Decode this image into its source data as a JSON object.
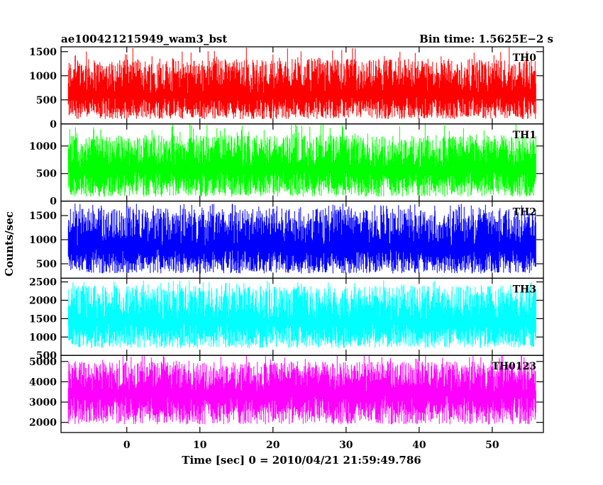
{
  "header": {
    "title": "ae100421215949_wam3_bst",
    "bin_time": "Bin time: 1.5625E−2 s"
  },
  "axes": {
    "xlabel": "Time [sec] 0 = 2010/04/21 21:59:49.786",
    "ylabel": "Counts/sec"
  },
  "chart_data": {
    "type": "line",
    "title": "ae100421215949_wam3_bst",
    "xlabel": "Time [sec] 0 = 2010/04/21 21:59:49.786",
    "ylabel": "Counts/sec",
    "xlim": [
      -9,
      57
    ],
    "x_data_range": [
      -8,
      56
    ],
    "x_ticks": [
      0,
      10,
      20,
      30,
      40,
      50
    ],
    "x_tick_labels": [
      "0",
      "10",
      "20",
      "30",
      "40",
      "50"
    ],
    "grid": false,
    "panels": [
      {
        "name": "TH0",
        "color": "#ff0000",
        "ylim": [
          0,
          1600
        ],
        "yticks": [
          0,
          500,
          1000,
          1500
        ],
        "ytick_labels": [
          "0",
          "500",
          "1000",
          "1500"
        ],
        "mean": 620,
        "low": 100,
        "high": 1350,
        "peak": 1600
      },
      {
        "name": "TH1",
        "color": "#00ff00",
        "ylim": [
          0,
          1400
        ],
        "yticks": [
          0,
          500,
          1000
        ],
        "ytick_labels": [
          "0",
          "500",
          "1000"
        ],
        "mean": 600,
        "low": 80,
        "high": 1200,
        "peak": 1400
      },
      {
        "name": "TH2",
        "color": "#0000ff",
        "ylim": [
          200,
          1800
        ],
        "yticks": [
          500,
          1000,
          1500
        ],
        "ytick_labels": [
          "500",
          "1000",
          "1500"
        ],
        "mean": 870,
        "low": 300,
        "high": 1650,
        "peak": 1750
      },
      {
        "name": "TH3",
        "color": "#00ffff",
        "ylim": [
          500,
          2600
        ],
        "yticks": [
          500,
          1000,
          1500,
          2000,
          2500
        ],
        "ytick_labels": [
          "500",
          "1000",
          "1500",
          "2000",
          "2500"
        ],
        "mean": 1450,
        "low": 700,
        "high": 2400,
        "peak": 2550
      },
      {
        "name": "TH0123",
        "color": "#ff00ff",
        "ylim": [
          1500,
          5300
        ],
        "yticks": [
          2000,
          3000,
          4000,
          5000
        ],
        "ytick_labels": [
          "2000",
          "3000",
          "4000",
          "5000"
        ],
        "mean": 3500,
        "low": 1900,
        "high": 5000,
        "peak": 5300
      }
    ]
  }
}
